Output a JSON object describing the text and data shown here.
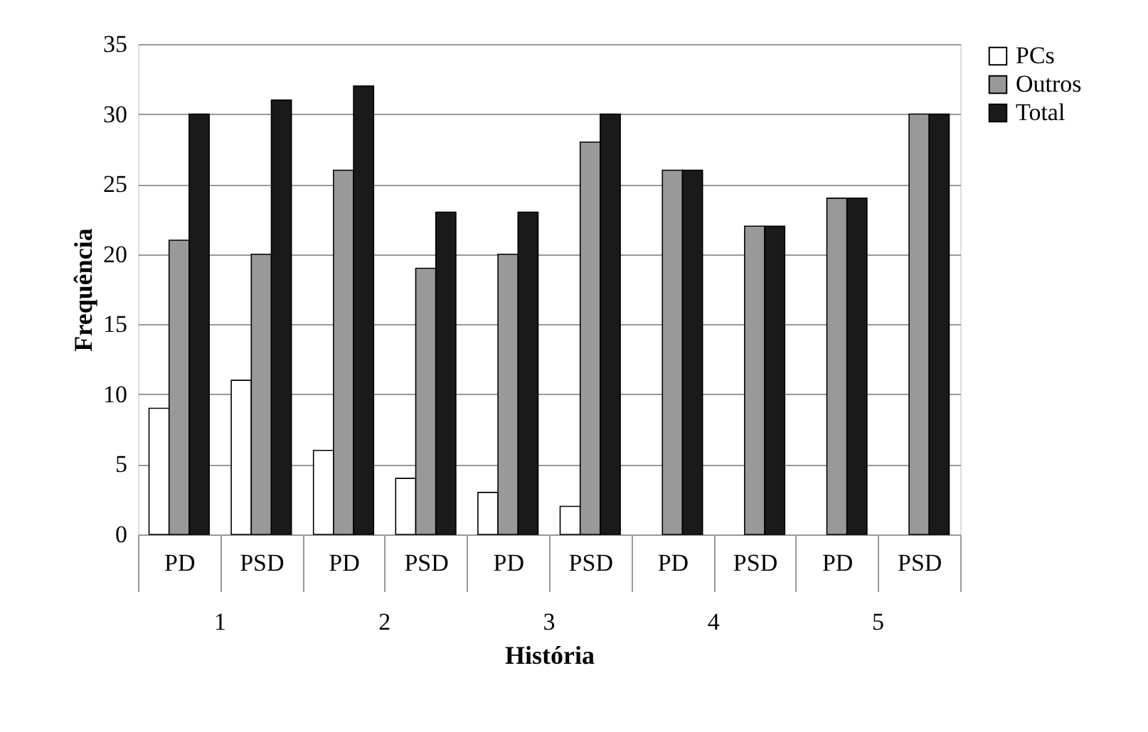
{
  "chart_data": {
    "type": "bar",
    "xlabel": "História",
    "ylabel": "Frequência",
    "categories": [
      "PD",
      "PSD",
      "PD",
      "PSD",
      "PD",
      "PSD",
      "PD",
      "PSD",
      "PD",
      "PSD"
    ],
    "annotations": [
      "1",
      "2",
      "3",
      "4",
      "5"
    ],
    "series": [
      {
        "name": "PCs",
        "color": "#ffffff",
        "values": [
          9,
          11,
          6,
          4,
          3,
          2,
          null,
          null,
          null,
          null
        ]
      },
      {
        "name": "Outros",
        "color": "#999999",
        "values": [
          21,
          20,
          26,
          19,
          20,
          28,
          26,
          22,
          24,
          30
        ]
      },
      {
        "name": "Total",
        "color": "#1a1a1a",
        "values": [
          30,
          31,
          32,
          23,
          23,
          30,
          26,
          22,
          24,
          30
        ]
      }
    ],
    "ylim": [
      0,
      35
    ],
    "yticks": [
      0,
      5,
      10,
      15,
      20,
      25,
      30,
      35
    ],
    "grid": "y",
    "legend": "right"
  }
}
